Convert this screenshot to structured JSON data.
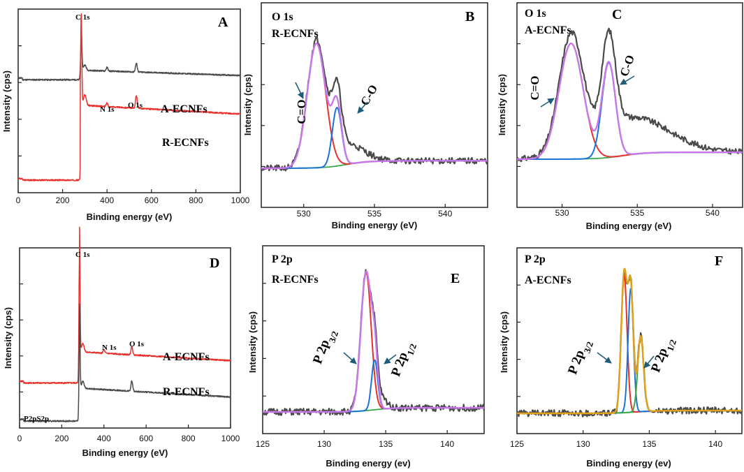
{
  "colors": {
    "raw": "#4a4a4a",
    "red": "#e8302c",
    "blue": "#1a73d9",
    "violet": "#c877ea",
    "green": "#3aa84a",
    "orange": "#e0a21a",
    "arrow": "#1d5d7a"
  },
  "chart_data": [
    {
      "id": "A",
      "type": "line",
      "panel_label": "A",
      "xlabel": "Binding energy (eV)",
      "ylabel": "Intensity (cps)",
      "xlim": [
        0,
        1000
      ],
      "xticks": [
        0,
        200,
        400,
        600,
        800,
        1000
      ],
      "xtick_labels": [
        "0",
        "200",
        "400",
        "600",
        "800",
        "1000"
      ],
      "peak_labels": [
        {
          "text": "C 1s",
          "x": 284
        },
        {
          "text": "N 1s",
          "x": 400
        },
        {
          "text": "O 1s",
          "x": 532
        }
      ],
      "series": [
        {
          "name": "A-ECNFs",
          "color": "raw",
          "offset": 0.63,
          "left_level": 0.615,
          "step_x": 285,
          "step_top": 0.67,
          "slope": -0.03,
          "peaks": [
            {
              "x": 284,
              "h": 0.22,
              "w": 3
            },
            {
              "x": 300,
              "h": 0.03,
              "w": 6
            },
            {
              "x": 400,
              "h": 0.02,
              "w": 4
            },
            {
              "x": 532,
              "h": 0.05,
              "w": 4
            }
          ]
        },
        {
          "name": "R-ECNFs",
          "color": "red",
          "offset": 0.4,
          "left_level": 0.04,
          "step_x": 280,
          "step_top": 0.47,
          "slope": -0.05,
          "peaks": [
            {
              "x": 284,
              "h": 0.53,
              "w": 2.5
            },
            {
              "x": 300,
              "h": 0.06,
              "w": 6
            },
            {
              "x": 400,
              "h": 0.02,
              "w": 4
            },
            {
              "x": 532,
              "h": 0.07,
              "w": 4
            }
          ]
        }
      ]
    },
    {
      "id": "B",
      "type": "line",
      "panel_label": "B",
      "header": [
        "O 1s",
        "R-ECNFs"
      ],
      "xlabel": "Binding energy (eV)",
      "ylabel": "Intensity (cps)",
      "xlim": [
        527,
        543
      ],
      "xticks": [
        530,
        535,
        540
      ],
      "xtick_labels": [
        "530",
        "535",
        "540"
      ],
      "baseline": {
        "y0": 0.0,
        "y1": 0.06,
        "x_mid": 533
      },
      "components": [
        {
          "name": "C=O",
          "center": 530.9,
          "height": 1.0,
          "sigma": 0.65,
          "color": "red"
        },
        {
          "name": "C-O",
          "center": 532.35,
          "height": 0.47,
          "sigma": 0.33,
          "color": "blue"
        }
      ],
      "raw_extra": [
        {
          "center": 533.0,
          "height": 0.16,
          "sigma": 1.2
        }
      ],
      "annotations": [
        {
          "text": "C=O",
          "target_x": 530.2,
          "rot": -90
        },
        {
          "text": "C-O",
          "target_x": 532.6,
          "rot": -70
        }
      ]
    },
    {
      "id": "C",
      "type": "line",
      "panel_label": "C",
      "header": [
        "O 1s",
        "A-ECNFs"
      ],
      "xlabel": "Binding energy (eV)",
      "ylabel": "Intensity (cps)",
      "xlim": [
        527,
        542
      ],
      "xticks": [
        530,
        535,
        540
      ],
      "xtick_labels": [
        "530",
        "535",
        "540"
      ],
      "baseline": {
        "y0": 0.0,
        "y1": 0.06,
        "x_mid": 534
      },
      "components": [
        {
          "name": "C=O",
          "center": 530.6,
          "height": 1.0,
          "sigma": 0.8,
          "color": "red"
        },
        {
          "name": "C-O",
          "center": 533.1,
          "height": 0.82,
          "sigma": 0.45,
          "color": "blue"
        }
      ],
      "raw_extra": [
        {
          "center": 534.5,
          "height": 0.32,
          "sigma": 2.5
        }
      ],
      "annotations": [
        {
          "text": "C=O",
          "target_x": 529.6,
          "rot": -90
        },
        {
          "text": "C-O",
          "target_x": 533.6,
          "rot": -70
        }
      ]
    },
    {
      "id": "D",
      "type": "line",
      "panel_label": "D",
      "xlabel": "Binding energy (eV)",
      "ylabel": "Intensity (cps)",
      "xlim": [
        0,
        1000
      ],
      "xticks": [
        0,
        200,
        400,
        600,
        800,
        1000
      ],
      "xtick_labels": [
        "0",
        "200",
        "400",
        "600",
        "800",
        "1000"
      ],
      "peak_labels": [
        {
          "text": "C 1s",
          "x": 284
        },
        {
          "text": "N 1s",
          "x": 400
        },
        {
          "text": "O 1s",
          "x": 532
        },
        {
          "text": "P2pS2p",
          "x": 60
        }
      ],
      "series": [
        {
          "name": "A-ECNFs",
          "color": "red",
          "offset": 0.24,
          "left_level": 0.24,
          "step_x": 284,
          "step_top": 0.42,
          "slope": -0.05,
          "peaks": [
            {
              "x": 284,
              "h": 0.73,
              "w": 2.5
            },
            {
              "x": 300,
              "h": 0.05,
              "w": 6
            },
            {
              "x": 400,
              "h": 0.02,
              "w": 4
            },
            {
              "x": 532,
              "h": 0.05,
              "w": 4
            }
          ]
        },
        {
          "name": "R-ECNFs",
          "color": "raw",
          "offset": 0.02,
          "left_level": 0.02,
          "step_x": 284,
          "step_top": 0.21,
          "slope": -0.05,
          "peaks": [
            {
              "x": 284,
              "h": 0.49,
              "w": 2.5
            },
            {
              "x": 300,
              "h": 0.04,
              "w": 6
            },
            {
              "x": 532,
              "h": 0.06,
              "w": 4
            }
          ]
        }
      ]
    },
    {
      "id": "E",
      "type": "line",
      "panel_label": "E",
      "header": [
        "P 2p",
        "R-ECNFs"
      ],
      "xlabel": "Binding energy (ev)",
      "ylabel": "Intensity (cps)",
      "xlim": [
        125,
        143
      ],
      "xticks": [
        125,
        130,
        135,
        140
      ],
      "xtick_labels": [
        "125",
        "130",
        "135",
        "140"
      ],
      "baseline": {
        "y0": 0.0,
        "y1": 0.03,
        "x_mid": 134
      },
      "components": [
        {
          "name": "P 2p3/2",
          "center": 133.4,
          "height": 1.0,
          "sigma": 0.42,
          "color": "red"
        },
        {
          "name": "P 2p1/2",
          "center": 134.1,
          "height": 0.36,
          "sigma": 0.25,
          "color": "blue"
        }
      ],
      "raw_extra": [
        {
          "center": 134.6,
          "height": 0.08,
          "sigma": 0.5
        }
      ],
      "annotations": [
        {
          "text": "P 2p",
          "sub": "3/2",
          "target_x": 132.6
        },
        {
          "text": "P 2p",
          "sub": "1/2",
          "target_x": 134.4
        }
      ]
    },
    {
      "id": "F",
      "type": "line",
      "panel_label": "F",
      "header": [
        "P 2p",
        "A-ECNFs"
      ],
      "xlabel": "Binding energy (ev)",
      "ylabel": "Intensity (cps)",
      "xlim": [
        125,
        142
      ],
      "xticks": [
        125,
        130,
        135,
        140
      ],
      "xtick_labels": [
        "125",
        "130",
        "135",
        "140"
      ],
      "baseline": {
        "y0": 0.0,
        "y1": 0.02,
        "x_mid": 134
      },
      "components": [
        {
          "name": "P 2p3/2",
          "center": 133.1,
          "height": 1.0,
          "sigma": 0.22,
          "color": "red"
        },
        {
          "name": "P 2p1/2",
          "center": 133.6,
          "height": 0.9,
          "sigma": 0.2,
          "color": "blue"
        },
        {
          "name": "P 2p",
          "center": 134.35,
          "height": 0.55,
          "sigma": 0.22,
          "color": "green"
        }
      ],
      "raw_extra": [],
      "annotations": [
        {
          "text": "P 2p",
          "sub": "3/2",
          "target_x": 132.4
        },
        {
          "text": "P 2p",
          "sub": "1/2",
          "target_x": 134.1
        }
      ]
    }
  ]
}
